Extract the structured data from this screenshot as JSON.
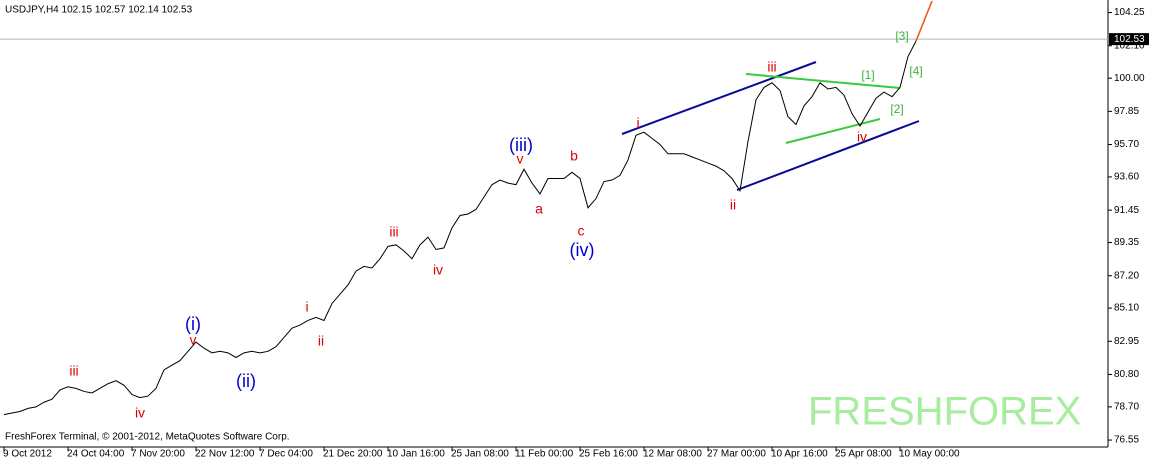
{
  "chart_data": {
    "type": "line",
    "title": "USDJPY,H4  102.15 102.57 102.14 102.53",
    "footer": "FreshForex Terminal, © 2001-2012, MetaQuotes Software Corp.",
    "watermark": "FRESHFOREX",
    "current_price": 102.53,
    "categories": [
      "9 Oct 2012",
      null,
      null,
      null,
      null,
      null,
      null,
      null,
      "24 Oct 04:00",
      null,
      null,
      null,
      null,
      null,
      null,
      null,
      "7 Nov 20:00",
      null,
      null,
      null,
      null,
      null,
      null,
      null,
      "22 Nov 12:00",
      null,
      null,
      null,
      null,
      null,
      null,
      null,
      "7 Dec 04:00",
      null,
      null,
      null,
      null,
      null,
      null,
      null,
      "21 Dec 20:00",
      null,
      null,
      null,
      null,
      null,
      null,
      null,
      "10 Jan 16:00",
      null,
      null,
      null,
      null,
      null,
      null,
      null,
      "25 Jan 08:00",
      null,
      null,
      null,
      null,
      null,
      null,
      null,
      "11 Feb 00:00",
      null,
      null,
      null,
      null,
      null,
      null,
      null,
      "25 Feb 16:00",
      null,
      null,
      null,
      null,
      null,
      null,
      null,
      "12 Mar 08:00",
      null,
      null,
      null,
      null,
      null,
      null,
      null,
      "27 Mar 00:00",
      null,
      null,
      null,
      null,
      null,
      null,
      null,
      "10 Apr 16:00",
      null,
      null,
      null,
      null,
      null,
      null,
      null,
      "25 Apr 08:00",
      null,
      null,
      null,
      null,
      null,
      null,
      null,
      "10 May 00:00",
      null,
      null,
      null,
      null
    ],
    "series": [
      {
        "color": "#000000",
        "values": [
          78.2,
          78.3,
          78.4,
          78.6,
          78.7,
          79.0,
          79.2,
          79.8,
          80.0,
          79.9,
          79.7,
          79.6,
          79.9,
          80.2,
          80.4,
          80.1,
          79.5,
          79.3,
          79.4,
          79.9,
          81.1,
          81.4,
          81.7,
          82.3,
          82.9,
          82.5,
          82.2,
          82.3,
          82.2,
          81.9,
          82.2,
          82.3,
          82.2,
          82.3,
          82.6,
          83.2,
          83.8,
          84.0,
          84.3,
          84.5,
          84.3,
          85.4,
          86.0,
          86.6,
          87.5,
          87.8,
          87.7,
          88.3,
          89.1,
          89.2,
          88.8,
          88.3,
          89.2,
          89.7,
          88.9,
          89.0,
          90.3,
          91.1,
          91.2,
          91.5,
          92.3,
          93.1,
          93.4,
          93.2,
          93.1,
          94.1,
          93.2,
          92.5,
          93.5,
          93.5,
          93.5,
          93.9,
          93.5,
          91.6,
          92.2,
          93.3,
          93.4,
          93.7,
          94.7,
          96.3,
          96.5,
          96.1,
          95.7,
          95.1,
          95.1,
          95.1,
          94.9,
          94.7,
          94.5,
          94.3,
          94.0,
          93.5,
          92.7,
          95.9,
          98.6,
          99.4,
          99.7,
          99.2,
          97.5,
          97.0,
          98.2,
          98.8,
          99.7,
          99.3,
          99.4,
          98.9,
          97.7,
          96.9,
          97.8,
          98.7,
          99.1,
          98.8,
          99.4,
          101.4,
          102.4,
          null,
          null
        ]
      },
      {
        "color": "#f05a14",
        "values": [
          null,
          null,
          null,
          null,
          null,
          null,
          null,
          null,
          null,
          null,
          null,
          null,
          null,
          null,
          null,
          null,
          null,
          null,
          null,
          null,
          null,
          null,
          null,
          null,
          null,
          null,
          null,
          null,
          null,
          null,
          null,
          null,
          null,
          null,
          null,
          null,
          null,
          null,
          null,
          null,
          null,
          null,
          null,
          null,
          null,
          null,
          null,
          null,
          null,
          null,
          null,
          null,
          null,
          null,
          null,
          null,
          null,
          null,
          null,
          null,
          null,
          null,
          null,
          null,
          null,
          null,
          null,
          null,
          null,
          null,
          null,
          null,
          null,
          null,
          null,
          null,
          null,
          null,
          null,
          null,
          null,
          null,
          null,
          null,
          null,
          null,
          null,
          null,
          null,
          null,
          null,
          null,
          null,
          null,
          null,
          null,
          null,
          null,
          null,
          null,
          null,
          null,
          null,
          null,
          null,
          null,
          null,
          null,
          null,
          null,
          null,
          null,
          null,
          null,
          102.4,
          103.7,
          105.0
        ]
      }
    ],
    "ylim": [
      76.1,
      105.0
    ],
    "yticks": [
      76.55,
      {
        "value": 78.7,
        "label": "78.70"
      },
      {
        "value": 80.8,
        "label": "80.80"
      },
      82.95,
      {
        "value": 85.1,
        "label": "85.10"
      },
      {
        "value": 87.2,
        "label": "87.20"
      },
      89.35,
      91.45,
      {
        "value": 93.6,
        "label": "93.60"
      },
      {
        "value": 95.7,
        "label": "95.70"
      },
      97.85,
      {
        "value": 100,
        "label": "100.00"
      },
      {
        "value": 102.1,
        "label": "102.10"
      },
      104.25
    ],
    "annotations": [
      {
        "text": "iii",
        "color": "#e00000"
      },
      {
        "text": "iv",
        "color": "#e00000"
      },
      {
        "text": "(i)",
        "color": "#0000d0"
      },
      {
        "text": "v",
        "color": "#e00000"
      },
      {
        "text": "(ii)",
        "color": "#0000d0"
      },
      {
        "text": "i",
        "color": "#e00000"
      },
      {
        "text": "ii",
        "color": "#e00000"
      },
      {
        "text": "iii",
        "color": "#e00000"
      },
      {
        "text": "iv",
        "color": "#e00000"
      },
      {
        "text": "(iii)",
        "color": "#0000d0"
      },
      {
        "text": "v",
        "color": "#e00000"
      },
      {
        "text": "a",
        "color": "#e00000"
      },
      {
        "text": "b",
        "color": "#e00000"
      },
      {
        "text": "c",
        "color": "#e00000"
      },
      {
        "text": "(iv)",
        "color": "#0000d0"
      },
      {
        "text": "i",
        "color": "#e00000"
      },
      {
        "text": "ii",
        "color": "#e00000"
      },
      {
        "text": "iii",
        "color": "#e00000"
      },
      {
        "text": "iv",
        "color": "#e00000"
      },
      {
        "text": "[1]",
        "color": "#3cb43c"
      },
      {
        "text": "[2]",
        "color": "#3cb43c"
      },
      {
        "text": "[3]",
        "color": "#3cb43c"
      },
      {
        "text": "[4]",
        "color": "#3cb43c"
      }
    ]
  }
}
